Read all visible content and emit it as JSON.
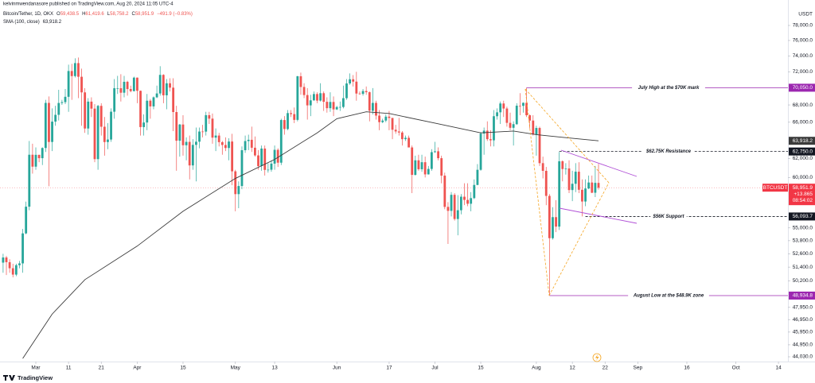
{
  "header": {
    "publisher": "kelvinmwendanasore published on TradingView.com, Aug 20, 2024 11:05 UTC-4"
  },
  "chart_data": {
    "type": "candlestick",
    "title": "Bitcoin/Tether, 1D, OKX",
    "ohlc_legend": [
      {
        "key": "O",
        "value": "59,438.5"
      },
      {
        "key": "H",
        "value": "61,419.6"
      },
      {
        "key": "L",
        "value": "58,758.2"
      },
      {
        "key": "C",
        "value": "58,951.9"
      }
    ],
    "change": "−491.9 (−0.83%)",
    "currency": "USDT",
    "up_color": "#26a69a",
    "down_color": "#ef5350",
    "log_scale": true,
    "grid": false,
    "candles": [
      [
        51800,
        52600,
        50900,
        52260
      ],
      [
        52260,
        52400,
        50700,
        51840
      ],
      [
        51840,
        52100,
        50900,
        51300
      ],
      [
        51300,
        51700,
        50500,
        50740
      ],
      [
        50740,
        51700,
        50600,
        51570
      ],
      [
        51570,
        51950,
        51300,
        51730
      ],
      [
        51730,
        54900,
        50900,
        54480
      ],
      [
        54480,
        57550,
        54400,
        57050
      ],
      [
        57050,
        63900,
        56700,
        62400
      ],
      [
        62400,
        63600,
        60400,
        61130
      ],
      [
        61130,
        63200,
        60800,
        62390
      ],
      [
        62390,
        62400,
        61600,
        62030
      ],
      [
        62030,
        63200,
        61300,
        63130
      ],
      [
        63130,
        68600,
        62700,
        68240
      ],
      [
        68240,
        69000,
        59100,
        63790
      ],
      [
        63790,
        67600,
        62800,
        66070
      ],
      [
        66070,
        67900,
        65600,
        66850
      ],
      [
        66850,
        69800,
        66200,
        68230
      ],
      [
        68230,
        68600,
        68000,
        68330
      ],
      [
        68330,
        69900,
        68100,
        68960
      ],
      [
        68960,
        72900,
        67200,
        72100
      ],
      [
        72100,
        73000,
        68600,
        71470
      ],
      [
        71470,
        73700,
        71300,
        73090
      ],
      [
        73090,
        73800,
        68800,
        71390
      ],
      [
        71390,
        72400,
        65600,
        69490
      ],
      [
        69490,
        70000,
        64800,
        65290
      ],
      [
        65290,
        68800,
        64600,
        68390
      ],
      [
        68390,
        68900,
        66600,
        67570
      ],
      [
        67570,
        68100,
        61600,
        61930
      ],
      [
        61930,
        68000,
        60800,
        67890
      ],
      [
        67890,
        68200,
        64500,
        65490
      ],
      [
        65490,
        66600,
        62300,
        63780
      ],
      [
        63780,
        65900,
        63000,
        64060
      ],
      [
        64060,
        67600,
        63800,
        67210
      ],
      [
        67210,
        71100,
        66400,
        69990
      ],
      [
        69990,
        71500,
        69300,
        69990
      ],
      [
        69990,
        71700,
        68400,
        69450
      ],
      [
        69450,
        71500,
        68900,
        70770
      ],
      [
        70770,
        70900,
        69100,
        69890
      ],
      [
        69890,
        70300,
        69500,
        69640
      ],
      [
        69640,
        71400,
        69600,
        71280
      ],
      [
        71280,
        71300,
        68200,
        69680
      ],
      [
        69680,
        69700,
        64500,
        65450
      ],
      [
        65450,
        66900,
        64500,
        65970
      ],
      [
        65970,
        69300,
        65100,
        68500
      ],
      [
        68500,
        68700,
        66400,
        67830
      ],
      [
        67830,
        69000,
        67500,
        68900
      ],
      [
        68900,
        70300,
        68800,
        69360
      ],
      [
        69360,
        72700,
        69100,
        71620
      ],
      [
        71620,
        71700,
        68200,
        69140
      ],
      [
        69140,
        71100,
        67500,
        70590
      ],
      [
        70590,
        71200,
        69600,
        70060
      ],
      [
        70060,
        71200,
        65000,
        67170
      ],
      [
        67170,
        67900,
        60700,
        63930
      ],
      [
        63930,
        65800,
        62200,
        65740
      ],
      [
        65740,
        66800,
        62300,
        63430
      ],
      [
        63430,
        64300,
        61800,
        63800
      ],
      [
        63800,
        64500,
        59800,
        61260
      ],
      [
        61260,
        64100,
        60800,
        63470
      ],
      [
        63470,
        65400,
        59600,
        63820
      ],
      [
        63820,
        65400,
        63100,
        64950
      ],
      [
        64950,
        65700,
        64300,
        64940
      ],
      [
        64940,
        67200,
        64500,
        66810
      ],
      [
        66810,
        67200,
        65800,
        66410
      ],
      [
        66410,
        67000,
        63600,
        64270
      ],
      [
        64270,
        65300,
        62800,
        64500
      ],
      [
        64500,
        64800,
        63300,
        63770
      ],
      [
        63770,
        63900,
        62400,
        63460
      ],
      [
        63460,
        64300,
        62800,
        63130
      ],
      [
        63130,
        64200,
        61800,
        63840
      ],
      [
        63840,
        64700,
        59200,
        60640
      ],
      [
        60640,
        60800,
        56600,
        58300
      ],
      [
        58300,
        59600,
        56900,
        59120
      ],
      [
        59120,
        63300,
        58800,
        62890
      ],
      [
        62890,
        64500,
        62600,
        63890
      ],
      [
        63890,
        64600,
        62900,
        64030
      ],
      [
        64030,
        65500,
        62700,
        63160
      ],
      [
        63160,
        64400,
        62200,
        62330
      ],
      [
        62330,
        62900,
        60800,
        61190
      ],
      [
        61190,
        63400,
        60700,
        63070
      ],
      [
        63070,
        63400,
        60200,
        60790
      ],
      [
        60790,
        61500,
        60500,
        60810
      ],
      [
        60810,
        61800,
        60600,
        61450
      ],
      [
        61450,
        63400,
        60800,
        62930
      ],
      [
        62930,
        63100,
        61100,
        61550
      ],
      [
        61550,
        66400,
        61300,
        66250
      ],
      [
        66250,
        66700,
        64600,
        65230
      ],
      [
        65230,
        67400,
        65100,
        67050
      ],
      [
        67050,
        67400,
        66600,
        66930
      ],
      [
        66930,
        67700,
        65900,
        66270
      ],
      [
        66270,
        71500,
        66100,
        71450
      ],
      [
        71450,
        71900,
        69200,
        70140
      ],
      [
        70140,
        70600,
        68800,
        69170
      ],
      [
        69170,
        70000,
        66300,
        67950
      ],
      [
        67950,
        69200,
        66700,
        68540
      ],
      [
        68540,
        69600,
        68500,
        69290
      ],
      [
        69290,
        69500,
        68200,
        68510
      ],
      [
        68510,
        70600,
        68400,
        69390
      ],
      [
        69390,
        69600,
        67300,
        68370
      ],
      [
        68370,
        68900,
        67100,
        67620
      ],
      [
        67620,
        69500,
        67200,
        68350
      ],
      [
        68350,
        69000,
        66700,
        67480
      ],
      [
        67480,
        67900,
        67400,
        67750
      ],
      [
        67750,
        68400,
        67300,
        67760
      ],
      [
        67760,
        70300,
        67600,
        68800
      ],
      [
        68800,
        71100,
        68600,
        70570
      ],
      [
        70570,
        71800,
        70400,
        71080
      ],
      [
        71080,
        71600,
        70200,
        70790
      ],
      [
        70790,
        72000,
        68500,
        69350
      ],
      [
        69350,
        69600,
        69200,
        69310
      ],
      [
        69310,
        69900,
        69100,
        69650
      ],
      [
        69650,
        70200,
        69200,
        69510
      ],
      [
        69510,
        69600,
        66100,
        67320
      ],
      [
        67320,
        70000,
        66900,
        68240
      ],
      [
        68240,
        68500,
        66300,
        66760
      ],
      [
        66760,
        67400,
        65100,
        66010
      ],
      [
        66010,
        66400,
        65900,
        66190
      ],
      [
        66190,
        66900,
        66000,
        66640
      ],
      [
        66640,
        67300,
        65100,
        66490
      ],
      [
        66490,
        66500,
        64100,
        65150
      ],
      [
        65150,
        65700,
        64700,
        64960
      ],
      [
        64960,
        66500,
        64500,
        64840
      ],
      [
        64840,
        65000,
        63400,
        64100
      ],
      [
        64100,
        64500,
        63900,
        64250
      ],
      [
        64250,
        64500,
        63200,
        63190
      ],
      [
        63190,
        63400,
        58400,
        60270
      ],
      [
        60270,
        62300,
        60200,
        61800
      ],
      [
        61800,
        62400,
        60700,
        60860
      ],
      [
        60860,
        62400,
        60600,
        61600
      ],
      [
        61600,
        62200,
        60000,
        60320
      ],
      [
        60320,
        61200,
        60300,
        60890
      ],
      [
        60890,
        63000,
        60700,
        62680
      ],
      [
        62680,
        63800,
        62600,
        62770
      ],
      [
        62770,
        63200,
        61800,
        62030
      ],
      [
        62030,
        62300,
        59400,
        60190
      ],
      [
        60190,
        60500,
        56800,
        57030
      ],
      [
        57030,
        57500,
        53500,
        56640
      ],
      [
        56640,
        58500,
        56100,
        58230
      ],
      [
        58230,
        58400,
        55700,
        55850
      ],
      [
        55850,
        58200,
        54300,
        56700
      ],
      [
        56700,
        58300,
        56300,
        58040
      ],
      [
        58040,
        59400,
        57200,
        57720
      ],
      [
        57720,
        59400,
        57100,
        57340
      ],
      [
        57340,
        58500,
        56600,
        57900
      ],
      [
        57900,
        59800,
        57800,
        59230
      ],
      [
        59230,
        61400,
        59200,
        60800
      ],
      [
        60800,
        64900,
        60700,
        64720
      ],
      [
        64720,
        65400,
        62400,
        65050
      ],
      [
        65050,
        66100,
        63900,
        64100
      ],
      [
        64100,
        65100,
        63300,
        63970
      ],
      [
        63970,
        67400,
        63300,
        66690
      ],
      [
        66690,
        67600,
        66300,
        67140
      ],
      [
        67140,
        68400,
        65800,
        68170
      ],
      [
        68170,
        68500,
        66600,
        67580
      ],
      [
        67580,
        67800,
        65500,
        65930
      ],
      [
        65930,
        67100,
        65100,
        65370
      ],
      [
        65370,
        66100,
        63400,
        65780
      ],
      [
        65780,
        68200,
        65700,
        67910
      ],
      [
        67910,
        69400,
        66800,
        67890
      ],
      [
        67890,
        68300,
        67100,
        68250
      ],
      [
        68250,
        70050,
        66600,
        66800
      ],
      [
        66800,
        66900,
        65300,
        66190
      ],
      [
        66190,
        66800,
        64500,
        64620
      ],
      [
        64620,
        65600,
        62300,
        65350
      ],
      [
        65350,
        65500,
        61200,
        61500
      ],
      [
        61500,
        62200,
        59900,
        60690
      ],
      [
        60690,
        61100,
        57200,
        58120
      ],
      [
        58120,
        58300,
        48934.8,
        54030
      ],
      [
        54030,
        57000,
        53900,
        56030
      ],
      [
        56030,
        57700,
        54600,
        55120
      ],
      [
        55120,
        62700,
        54800,
        61700
      ],
      [
        61700,
        61800,
        59600,
        60880
      ],
      [
        60880,
        61500,
        60300,
        60940
      ],
      [
        60940,
        61800,
        58400,
        58710
      ],
      [
        58710,
        60700,
        57600,
        59350
      ],
      [
        59350,
        61500,
        58500,
        60600
      ],
      [
        60600,
        61600,
        58400,
        58740
      ],
      [
        58740,
        59800,
        56100,
        57560
      ],
      [
        57560,
        59800,
        57100,
        58870
      ],
      [
        58870,
        60200,
        58800,
        59480
      ],
      [
        59480,
        60200,
        58400,
        58440
      ],
      [
        58440,
        61200,
        58000,
        59443.8
      ],
      [
        59438.5,
        61419.6,
        58758.2,
        58951.9
      ]
    ],
    "xlim": [
      -0.95,
      239.9
    ],
    "xticks": [
      {
        "value": 10,
        "label": "Mar"
      },
      {
        "value": 20,
        "label": "11"
      },
      {
        "value": 30,
        "label": "21"
      },
      {
        "value": 41,
        "label": "Apr"
      },
      {
        "value": 55,
        "label": "15"
      },
      {
        "value": 71,
        "label": "May"
      },
      {
        "value": 83,
        "label": "13"
      },
      {
        "value": 102,
        "label": "Jun"
      },
      {
        "value": 118,
        "label": "17"
      },
      {
        "value": 132,
        "label": "Jul"
      },
      {
        "value": 146,
        "label": "15"
      },
      {
        "value": 163,
        "label": "Aug"
      },
      {
        "value": 174,
        "label": "12"
      },
      {
        "value": 184,
        "label": "22"
      },
      {
        "value": 194,
        "label": "Sep"
      },
      {
        "value": 209,
        "label": "16"
      },
      {
        "value": 224,
        "label": "Oct"
      },
      {
        "value": 237,
        "label": "14"
      }
    ],
    "ylim": [
      43670,
      80390
    ],
    "yticks": [
      {
        "value": 78000,
        "label": "78,000.0"
      },
      {
        "value": 76000,
        "label": "76,000.0"
      },
      {
        "value": 74000,
        "label": "74,000.0"
      },
      {
        "value": 72000,
        "label": "72,000.0"
      },
      {
        "value": 68000,
        "label": "68,000.0"
      },
      {
        "value": 66000,
        "label": "66,000.0"
      },
      {
        "value": 62000,
        "label": "62,000.0"
      },
      {
        "value": 60000,
        "label": "60,000.0"
      },
      {
        "value": 55000,
        "label": "55,000.0"
      },
      {
        "value": 53800,
        "label": "53,800.0"
      },
      {
        "value": 52600,
        "label": "52,600.0"
      },
      {
        "value": 51400,
        "label": "51,400.0"
      },
      {
        "value": 50200,
        "label": "50,200.0"
      },
      {
        "value": 47950,
        "label": "47,950.0"
      },
      {
        "value": 46950,
        "label": "46,950.0"
      },
      {
        "value": 45950,
        "label": "45,950.0"
      },
      {
        "value": 44950,
        "label": "44,950.0"
      },
      {
        "value": 44030,
        "label": "44,030.0"
      }
    ],
    "sma": {
      "name": "SMA (100, close)",
      "last": {
        "value": 63918.2,
        "label": "63,918.2"
      },
      "color": "#3a3a3a",
      "x": [
        6,
        15,
        25,
        41,
        55,
        71,
        83,
        96,
        102,
        111,
        118,
        132,
        146,
        156,
        163,
        171,
        182
      ],
      "values": [
        43900,
        47400,
        50300,
        53300,
        56600,
        59900,
        61900,
        64800,
        66400,
        67200,
        67000,
        65900,
        64800,
        65000,
        64600,
        64300,
        63918.2
      ]
    },
    "last_price": {
      "symbol": "BTCUSDT",
      "value": 58951.9,
      "label": "58,951.9",
      "change": "+13.865",
      "countdown": "08:54:02",
      "color": "#f23645"
    },
    "annotations": [
      {
        "text": "July High at the $70K mark",
        "price": {
          "value": 70050,
          "label": "70,050.0"
        },
        "color": "#9c27b0",
        "text_color": "#f5a623",
        "dashed": false
      },
      {
        "text": "$62.75K Resistance",
        "price": {
          "value": 62750,
          "label": "62,750.0"
        },
        "color": "#131722",
        "text_color": "#f5a623",
        "dashed": true
      },
      {
        "text": "$56K Support",
        "price": {
          "value": 56093.7,
          "label": "56,093.7"
        },
        "color": "#131722",
        "text_color": "#f5a623",
        "dashed": true
      },
      {
        "text": "August Low at the $48.9K zone",
        "price": {
          "value": 48934.8,
          "label": "48,934.8"
        },
        "color": "#9c27b0",
        "text_color": "#f5a623",
        "dashed": false
      }
    ]
  },
  "footer": {
    "brand": "TradingView"
  }
}
